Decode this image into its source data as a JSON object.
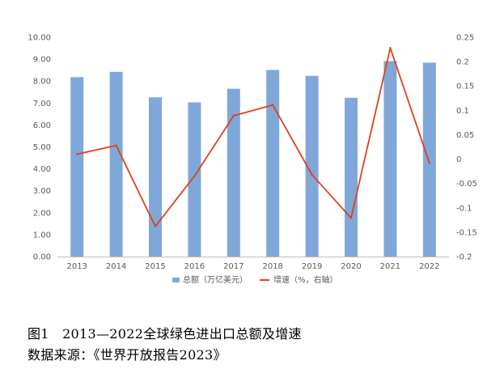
{
  "chart_data": {
    "type": "bar+line",
    "categories": [
      "2013",
      "2014",
      "2015",
      "2016",
      "2017",
      "2018",
      "2019",
      "2020",
      "2021",
      "2022"
    ],
    "series": [
      {
        "name": "总额（万亿美元）",
        "type": "bar",
        "axis": "left",
        "color": "#7fa8d9",
        "values": [
          8.18,
          8.42,
          7.26,
          7.03,
          7.65,
          8.51,
          8.24,
          7.24,
          8.91,
          8.84
        ]
      },
      {
        "name": "增速（%，右轴）",
        "type": "line",
        "axis": "right",
        "color": "#e0401e",
        "values": [
          0.01,
          0.028,
          -0.138,
          -0.035,
          0.089,
          0.111,
          -0.032,
          -0.121,
          0.228,
          -0.008
        ]
      }
    ],
    "y_left": {
      "lim": [
        0,
        10
      ],
      "ticks": [
        "0.00",
        "1.00",
        "2.00",
        "3.00",
        "4.00",
        "5.00",
        "6.00",
        "7.00",
        "8.00",
        "9.00",
        "10.00"
      ]
    },
    "y_right": {
      "lim": [
        -0.2,
        0.25
      ],
      "ticks": [
        "-0.2",
        "-0.15",
        "-0.1",
        "-0.05",
        "0",
        "0.05",
        "0.1",
        "0.15",
        "0.2",
        "0.25"
      ]
    },
    "grid": false,
    "legend_position": "bottom"
  },
  "caption": {
    "line1": "图1　2013—2022全球绿色进出口总额及增速",
    "line2": "数据来源：《世界开放报告2023》"
  }
}
